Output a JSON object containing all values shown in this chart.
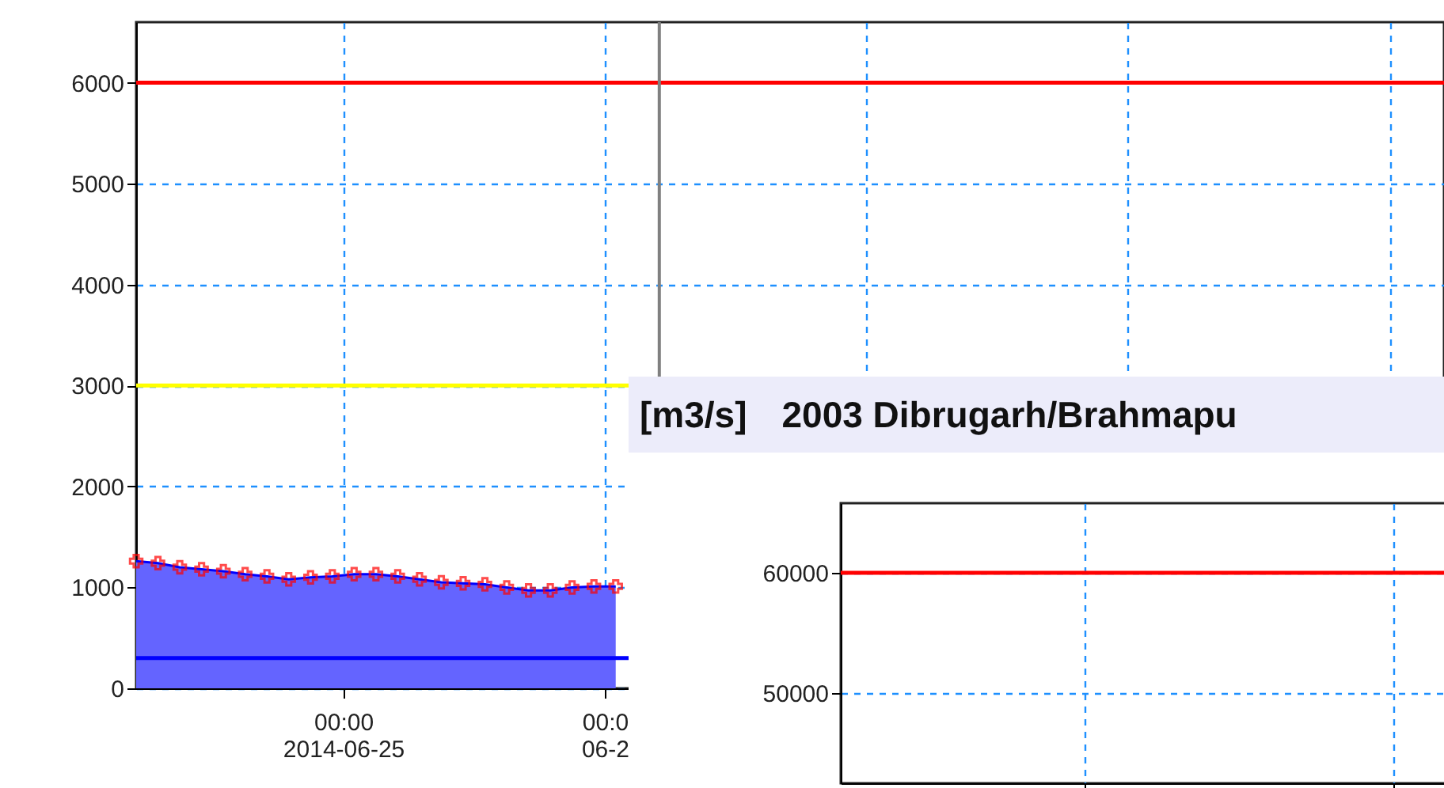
{
  "chart_data": [
    {
      "type": "area",
      "x": [
        "2014-06-24T05:00",
        "2014-06-24T07:00",
        "2014-06-24T09:00",
        "2014-06-24T11:00",
        "2014-06-24T13:00",
        "2014-06-24T15:00",
        "2014-06-24T17:00",
        "2014-06-24T19:00",
        "2014-06-24T21:00",
        "2014-06-24T23:00",
        "2014-06-25T01:00",
        "2014-06-25T03:00",
        "2014-06-25T05:00",
        "2014-06-25T07:00",
        "2014-06-25T09:00",
        "2014-06-25T11:00",
        "2014-06-25T13:00",
        "2014-06-25T15:00",
        "2014-06-25T17:00",
        "2014-06-25T19:00",
        "2014-06-25T21:00",
        "2014-06-25T23:00",
        "2014-06-26T01:00"
      ],
      "series": [
        {
          "color": "#6464ff",
          "values": [
            1260,
            1240,
            1200,
            1180,
            1160,
            1130,
            1110,
            1080,
            1100,
            1110,
            1130,
            1130,
            1110,
            1080,
            1050,
            1040,
            1030,
            1000,
            970,
            970,
            1000,
            1010,
            1010
          ]
        }
      ],
      "xlim": [
        "2014-06-24T05:00",
        "2014-06-29T05:00"
      ],
      "xticks": [
        {
          "value": "2014-06-25T00:00",
          "label": "00:00\n2014-06-25"
        },
        {
          "value": "2014-06-26T00:00",
          "label": "00:0\n06-2"
        },
        {
          "value": "2014-06-27T00:00",
          "label": null
        },
        {
          "value": "2014-06-28T00:00",
          "label": null
        },
        {
          "value": "2014-06-29T00:00",
          "label": null
        }
      ],
      "ylim": [
        0,
        6600
      ],
      "yticks": [
        0,
        1000,
        2000,
        3000,
        4000,
        5000,
        6000
      ],
      "ref_lines": [
        {
          "axis": "y",
          "value": 6000,
          "color": "#ff0000"
        },
        {
          "axis": "y",
          "value": 3000,
          "color": "#ffff00"
        },
        {
          "axis": "y",
          "value": 300,
          "color": "#0000ff"
        },
        {
          "axis": "x",
          "value": "2014-06-26T05:00",
          "color": "#808080"
        }
      ],
      "marker": "cross",
      "grid": true
    },
    {
      "type": "line",
      "title": "2003 Dibrugarh/Brahmapu",
      "ylabel": "[m3/s]",
      "categories": [
        null,
        null
      ],
      "ylim": [
        42500,
        65800
      ],
      "yticks": [
        50000,
        60000
      ],
      "ref_lines": [
        {
          "axis": "y",
          "value": 60000,
          "color": "#ff0000"
        }
      ],
      "tick_labels": "y",
      "grid": true
    }
  ]
}
